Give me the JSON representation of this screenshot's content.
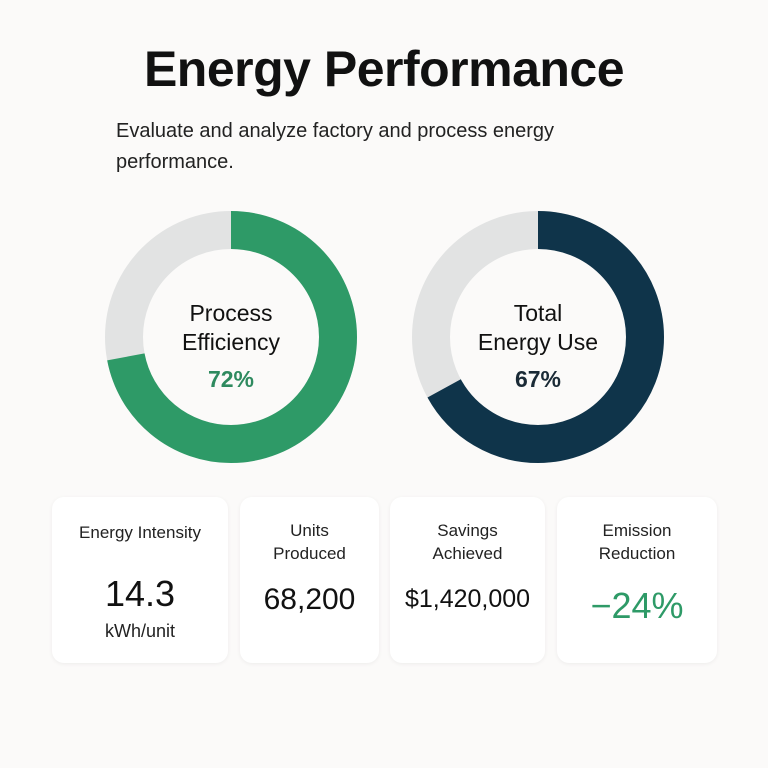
{
  "header": {
    "title": "Energy Performance",
    "subtitle": "Evaluate and analyze factory and process energy performance."
  },
  "donuts": [
    {
      "label_line1": "Process",
      "label_line2": "Efficiency",
      "value": "72%",
      "fraction": 0.72,
      "color": "#2e9a67",
      "track": "#e2e3e3"
    },
    {
      "label_line1": "Total",
      "label_line2": "Energy Use",
      "value": "67%",
      "fraction": 0.67,
      "color": "#0f344a",
      "track": "#e2e3e3"
    }
  ],
  "cards": [
    {
      "label": "Energy Intensity",
      "value": "14.3",
      "unit": "kWh/unit"
    },
    {
      "label": "Units Produced",
      "value": "68,200"
    },
    {
      "label": "Savings Achieved",
      "value": "$1,420,000"
    },
    {
      "label": "Emission Reduction",
      "value": "−24%",
      "value_color": "#2e9a67"
    }
  ]
}
